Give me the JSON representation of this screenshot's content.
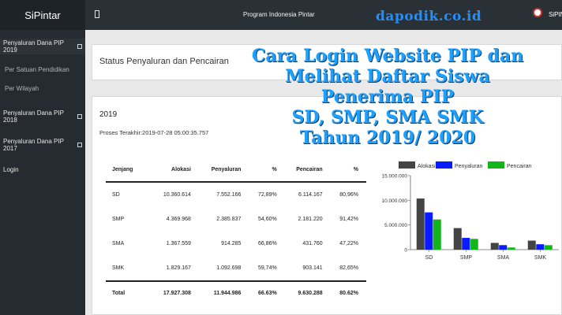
{
  "app": {
    "brand": "SiPintar",
    "program_title": "Program Indonesia Pintar",
    "watermark": "dapodik.co.id",
    "user": "SiPIN"
  },
  "sidebar": {
    "items": [
      {
        "label": "Penyaluran Dana PIP 2019",
        "subitems": [
          "Per Satuan Pendidikan",
          "Per Wilayah"
        ]
      },
      {
        "label": "Penyaluran Dana PIP 2018"
      },
      {
        "label": "Penyaluran Dana PIP 2017"
      },
      {
        "label": "Login"
      }
    ]
  },
  "main": {
    "status_title": "Status Penyaluran dan Pencairan",
    "year": "2019",
    "proses": "Proses Terakhir:2019-07-28 05:00:35.757",
    "table": {
      "headers": [
        "Jenjang",
        "Alokasi",
        "Penyaluran",
        "%",
        "Pencairan",
        "%"
      ],
      "rows": [
        [
          "SD",
          "10.360.614",
          "7.552.166",
          "72,89%",
          "6.114.167",
          "80,96%"
        ],
        [
          "SMP",
          "4.369.968",
          "2.385.837",
          "54,60%",
          "2.181.220",
          "91,42%"
        ],
        [
          "SMA",
          "1.367.559",
          "914.285",
          "66,86%",
          "431.760",
          "47,22%"
        ],
        [
          "SMK",
          "1.829.167",
          "1.092.698",
          "59,74%",
          "903.141",
          "82,65%"
        ]
      ],
      "total": [
        "Total",
        "17.927.308",
        "11.944.986",
        "66.63%",
        "9.630.288",
        "80.62%"
      ]
    }
  },
  "overlay_lines": [
    "Cara Login Website PIP dan",
    "Melihat Daftar Siswa",
    "Penerima PIP",
    "SD, SMP, SMA SMK",
    "Tahun 2019/ 2020"
  ],
  "chart_data": {
    "type": "bar",
    "categories": [
      "SD",
      "SMP",
      "SMA",
      "SMK"
    ],
    "series": [
      {
        "name": "Alokasi",
        "color": "#444444",
        "values": [
          10360614,
          4369968,
          1367559,
          1829167
        ]
      },
      {
        "name": "Penyaluran",
        "color": "#0b1bff",
        "values": [
          7552166,
          2385837,
          914285,
          1092698
        ]
      },
      {
        "name": "Pencairan",
        "color": "#12b51a",
        "values": [
          6114167,
          2181220,
          431760,
          903141
        ]
      }
    ],
    "ylim": [
      0,
      15000000
    ],
    "yticks": [
      "0",
      "5.000.000",
      "10.000.000",
      "15.000.000"
    ],
    "grid": false,
    "legend": "top"
  }
}
